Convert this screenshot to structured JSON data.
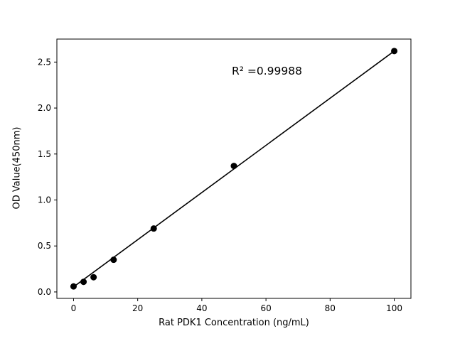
{
  "chart_data": {
    "type": "scatter",
    "title": "",
    "xlabel": "Rat PDK1 Concentration (ng/mL)",
    "ylabel": "OD Value(450nm)",
    "annotation": "R² =0.99988",
    "x": [
      0,
      3.125,
      6.25,
      12.5,
      25,
      50,
      100
    ],
    "y": [
      0.06,
      0.11,
      0.16,
      0.35,
      0.69,
      1.37,
      2.62
    ],
    "fit_line": {
      "x": [
        0,
        100
      ],
      "y": [
        0.055,
        2.62
      ]
    },
    "xlim": [
      -5.2,
      105.2
    ],
    "ylim": [
      -0.07,
      2.75
    ],
    "xticks": [
      0,
      20,
      40,
      60,
      80,
      100
    ],
    "xticklabels": [
      "0",
      "20",
      "40",
      "60",
      "80",
      "100"
    ],
    "yticks": [
      0.0,
      0.5,
      1.0,
      1.5,
      2.0,
      2.5
    ],
    "yticklabels": [
      "0.0",
      "0.5",
      "1.0",
      "1.5",
      "2.0",
      "2.5"
    ],
    "legend": null,
    "grid": false,
    "marker_color": "#000000",
    "line_color": "#000000",
    "axis_color": "#000000",
    "background_color": "#ffffff"
  }
}
